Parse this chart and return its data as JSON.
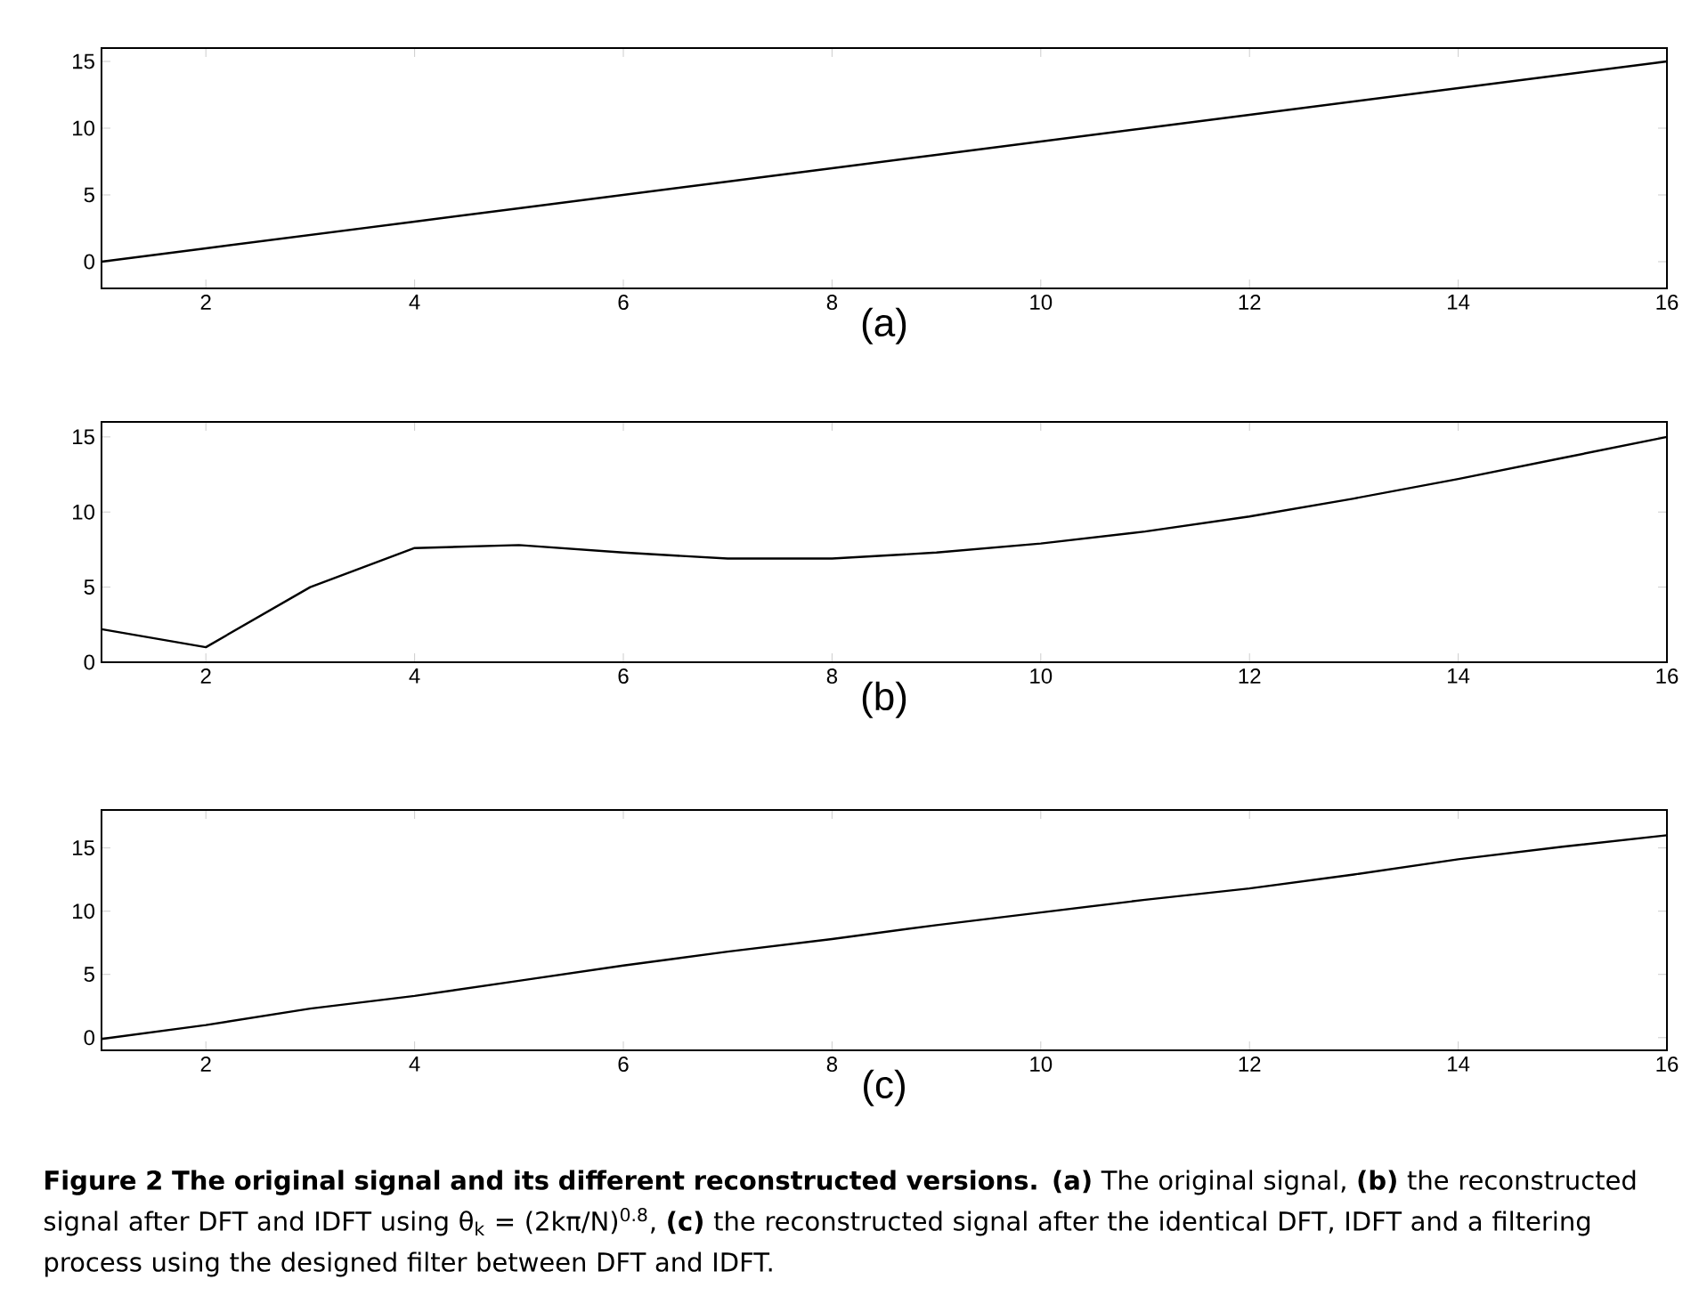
{
  "chart_data": [
    {
      "type": "line",
      "xlabel": "(a)",
      "x": [
        1,
        2,
        3,
        4,
        5,
        6,
        7,
        8,
        9,
        10,
        11,
        12,
        13,
        14,
        15,
        16
      ],
      "values": [
        0,
        1,
        2,
        3,
        4,
        5,
        6,
        7,
        8,
        9,
        10,
        11,
        12,
        13,
        14,
        15
      ],
      "color": "#000000",
      "xlim": [
        1,
        16
      ],
      "ylim": [
        -2,
        16
      ],
      "xticks": [
        2,
        4,
        6,
        8,
        10,
        12,
        14,
        16
      ],
      "yticks": [
        0,
        5,
        10,
        15
      ]
    },
    {
      "type": "line",
      "xlabel": "(b)",
      "x": [
        1,
        2,
        3,
        4,
        5,
        6,
        7,
        8,
        9,
        10,
        11,
        12,
        13,
        14,
        15,
        16
      ],
      "values": [
        2.2,
        1,
        5,
        7.6,
        7.8,
        7.3,
        6.9,
        6.9,
        7.3,
        7.9,
        8.7,
        9.7,
        10.9,
        12.2,
        13.6,
        15
      ],
      "color": "#000000",
      "xlim": [
        1,
        16
      ],
      "ylim": [
        0,
        16
      ],
      "xticks": [
        2,
        4,
        6,
        8,
        10,
        12,
        14,
        16
      ],
      "yticks": [
        0,
        5,
        10,
        15
      ]
    },
    {
      "type": "line",
      "xlabel": "(c)",
      "x": [
        1,
        2,
        3,
        4,
        5,
        6,
        7,
        8,
        9,
        10,
        11,
        12,
        13,
        14,
        15,
        16
      ],
      "values": [
        -0.1,
        1,
        2.3,
        3.3,
        4.5,
        5.7,
        6.8,
        7.8,
        8.9,
        9.9,
        10.9,
        11.8,
        12.9,
        14.1,
        15.1,
        16
      ],
      "color": "#000000",
      "xlim": [
        1,
        16
      ],
      "ylim": [
        -1,
        18
      ],
      "xticks": [
        2,
        4,
        6,
        8,
        10,
        12,
        14,
        16
      ],
      "yticks": [
        0,
        5,
        10,
        15
      ],
      "annotations": [
        "**Figure 2 The original signal and its different reconstructed versions.** **(a)** The original signal, **(b)** the reconstructed signal after DFT and IDFT using θ$_{k}$ = (2kπ/N)$^{0.8}$, **(c)** the reconstructed signal after the identical DFT, IDFT and a filtering process using the designed filter between DFT and IDFT."
      ]
    }
  ]
}
